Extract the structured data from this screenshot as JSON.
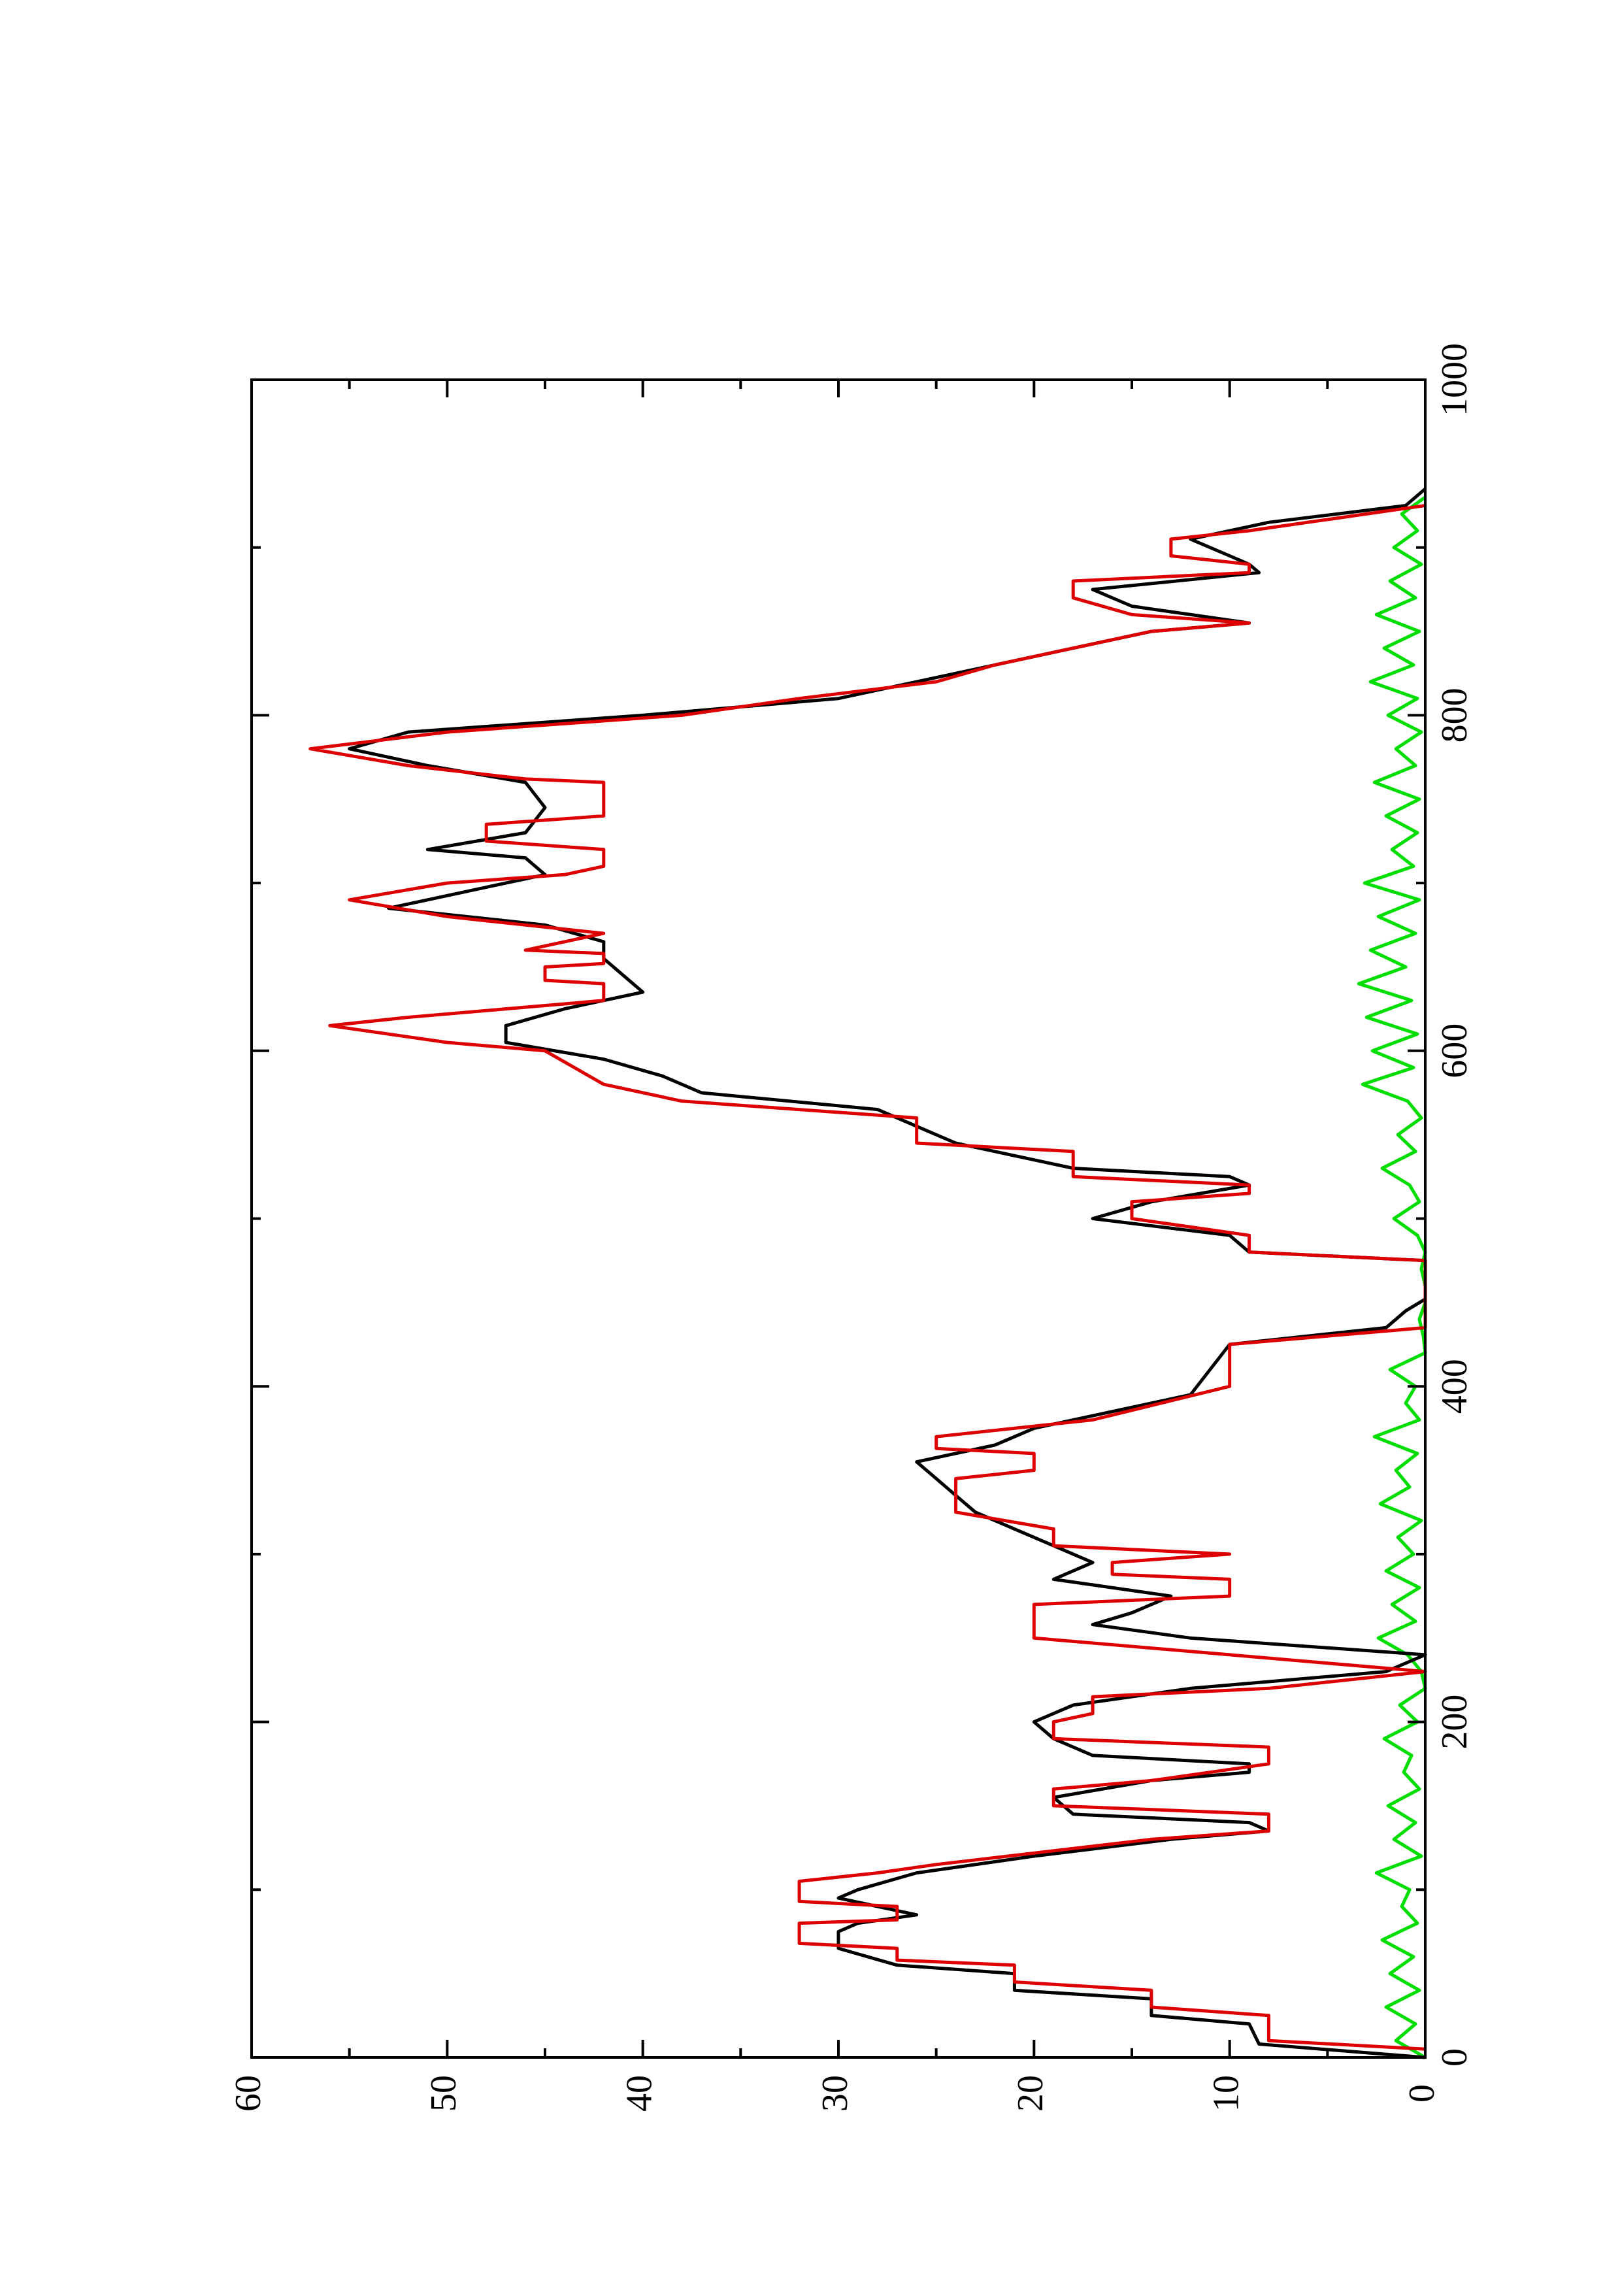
{
  "chart_data": {
    "type": "line",
    "xlim": [
      0,
      1000
    ],
    "xticks": [
      0,
      200,
      400,
      600,
      800,
      1000
    ],
    "xminor_ticks": [
      100,
      300,
      500,
      700,
      900
    ],
    "ylim": [
      0,
      60
    ],
    "yticks": [
      0,
      10,
      20,
      30,
      40,
      50,
      60
    ],
    "yminor_ticks": [
      5,
      15,
      25,
      35,
      45,
      55
    ],
    "orientation": "rotated",
    "series": [
      {
        "color": "#00dd00",
        "x": [
          0,
          10,
          20,
          30,
          40,
          50,
          60,
          70,
          80,
          90,
          100,
          110,
          120,
          130,
          140,
          150,
          160,
          170,
          180,
          190,
          200,
          210,
          220,
          230,
          240,
          250,
          260,
          270,
          280,
          290,
          300,
          310,
          320,
          330,
          340,
          350,
          360,
          370,
          380,
          390,
          400,
          410,
          420,
          430,
          440,
          450,
          460,
          470,
          480,
          490,
          500,
          510,
          520,
          530,
          540,
          550,
          560,
          570,
          580,
          590,
          600,
          610,
          620,
          630,
          640,
          650,
          660,
          670,
          680,
          690,
          700,
          710,
          720,
          730,
          740,
          750,
          760,
          770,
          780,
          790,
          800,
          810,
          820,
          830,
          840,
          850,
          860,
          870,
          880,
          890,
          900,
          910,
          920,
          930
        ],
        "values": [
          0,
          1.5,
          0.5,
          2,
          0.3,
          1.8,
          0.6,
          2.2,
          0.4,
          1.2,
          0.8,
          2.5,
          0.2,
          1.6,
          0.5,
          1.9,
          0.3,
          1.1,
          0.7,
          2.1,
          0.4,
          1.3,
          0,
          0.2,
          0.9,
          2.4,
          0.5,
          1.7,
          0.3,
          2,
          0.6,
          1.4,
          0.2,
          2.3,
          0.8,
          1.5,
          0.4,
          2.6,
          0.3,
          1,
          0.5,
          1.8,
          0,
          0.1,
          0.3,
          0,
          0,
          0.2,
          0,
          0.4,
          1.6,
          0.3,
          0.8,
          2.2,
          0.5,
          1.4,
          0.2,
          0.9,
          3.2,
          0.6,
          2.7,
          0.4,
          3,
          0.7,
          3.4,
          1,
          2.8,
          0.5,
          2.4,
          0.3,
          3.1,
          0.6,
          1.7,
          0.4,
          2,
          0.3,
          2.6,
          0.5,
          1.5,
          0.2,
          1.9,
          0.4,
          2.8,
          0.6,
          2.1,
          0.3,
          2.5,
          0.5,
          1.8,
          0.2,
          1.6,
          0.4,
          1.2,
          0
        ]
      },
      {
        "color": "#000000",
        "x": [
          0,
          8,
          20,
          25,
          35,
          40,
          50,
          55,
          65,
          75,
          80,
          85,
          90,
          95,
          100,
          110,
          120,
          130,
          135,
          140,
          145,
          155,
          165,
          170,
          175,
          180,
          190,
          200,
          210,
          220,
          230,
          240,
          250,
          258,
          265,
          275,
          285,
          295,
          305,
          315,
          325,
          335,
          345,
          355,
          365,
          375,
          385,
          395,
          410,
          425,
          435,
          445,
          452,
          475,
          480,
          490,
          500,
          510,
          520,
          525,
          530,
          545,
          555,
          565,
          575,
          585,
          595,
          605,
          615,
          625,
          635,
          645,
          655,
          665,
          675,
          685,
          695,
          705,
          715,
          720,
          730,
          745,
          760,
          770,
          780,
          790,
          800,
          810,
          820,
          830,
          840,
          850,
          855,
          865,
          875,
          885,
          890,
          895,
          905,
          915,
          925,
          935
        ],
        "values": [
          0,
          8.5,
          9,
          14,
          14,
          21,
          21,
          27,
          30,
          30,
          29,
          26,
          28,
          30,
          29,
          26,
          20,
          13,
          8,
          9,
          18,
          19,
          14,
          9,
          9,
          17,
          19,
          20,
          18,
          12,
          2,
          0,
          12,
          17,
          15,
          13,
          19,
          17,
          19,
          21,
          23,
          24,
          25,
          26,
          22,
          20,
          16,
          12,
          11,
          10,
          2,
          1,
          0,
          0,
          9,
          10,
          17,
          14,
          9,
          10,
          18,
          24,
          26,
          28,
          37,
          39,
          42,
          47,
          47,
          44,
          40,
          41,
          42,
          42,
          45,
          53,
          49,
          45,
          46,
          51,
          46,
          45,
          46,
          51,
          55,
          52,
          40,
          30,
          26,
          22,
          18,
          14,
          9,
          15,
          17,
          8.5,
          9,
          10,
          12,
          8,
          1,
          0
        ]
      },
      {
        "color": "#dd0000",
        "x": [
          5,
          10,
          25,
          30,
          40,
          45,
          55,
          58,
          65,
          68,
          80,
          82,
          90,
          93,
          105,
          110,
          115,
          130,
          135,
          145,
          150,
          160,
          165,
          175,
          185,
          190,
          200,
          205,
          215,
          220,
          230,
          240,
          250,
          270,
          275,
          285,
          288,
          295,
          300,
          305,
          315,
          325,
          345,
          350,
          360,
          363,
          370,
          380,
          400,
          425,
          435,
          475,
          480,
          490,
          500,
          510,
          515,
          520,
          525,
          540,
          545,
          560,
          570,
          580,
          600,
          605,
          615,
          620,
          630,
          640,
          642,
          650,
          652,
          658,
          660,
          665,
          670,
          680,
          690,
          700,
          705,
          710,
          720,
          725,
          735,
          740,
          760,
          762,
          770,
          780,
          790,
          800,
          810,
          820,
          830,
          840,
          850,
          855,
          860,
          870,
          880,
          885,
          890,
          895,
          905,
          910,
          925
        ],
        "values": [
          0,
          8,
          8,
          14,
          14,
          21,
          21,
          27,
          27,
          32,
          32,
          27,
          27,
          32,
          32,
          28,
          25,
          14,
          8,
          8,
          19,
          19,
          14,
          8,
          8,
          19,
          19,
          17,
          17,
          8,
          0,
          10,
          20,
          20,
          10,
          10,
          16,
          16,
          10,
          19,
          19,
          24,
          24,
          20,
          20,
          25,
          25,
          17,
          10,
          10,
          0,
          0,
          9,
          9,
          15,
          15,
          9,
          9,
          18,
          18,
          26,
          26,
          38,
          42,
          45,
          50,
          56,
          52,
          42,
          42,
          45,
          45,
          42,
          42,
          46,
          44,
          42,
          50,
          55,
          50,
          44,
          42,
          42,
          48,
          48,
          42,
          42,
          46,
          52,
          57,
          50,
          38,
          32,
          25,
          22,
          18,
          14,
          9,
          15,
          18,
          18,
          9,
          9,
          13,
          13,
          9,
          0
        ]
      }
    ]
  }
}
